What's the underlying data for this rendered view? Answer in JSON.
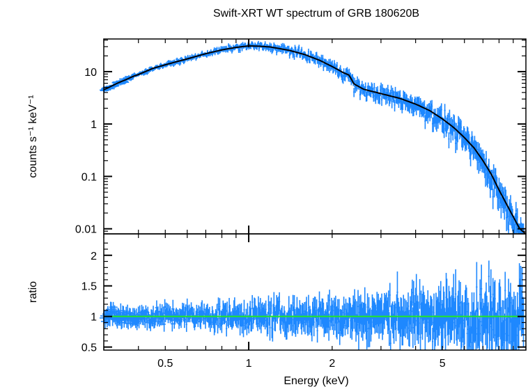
{
  "chart_data": {
    "type": "scatter",
    "title": "Swift-XRT WT spectrum of GRB 180620B",
    "xlabel": "Energy (keV)",
    "xscale": "log",
    "xlim": [
      0.3,
      10
    ],
    "xticks_major": [
      1
    ],
    "xticklabels": [
      {
        "value": 0.5,
        "label": "0.5"
      },
      {
        "value": 1,
        "label": "1"
      },
      {
        "value": 2,
        "label": "2"
      },
      {
        "value": 5,
        "label": "5"
      }
    ],
    "colors": {
      "data": "#1e88ff",
      "model": "#000000",
      "unity": "#22e822",
      "axes": "#000000"
    },
    "panels": [
      {
        "id": "spectrum",
        "ylabel": "counts s⁻¹ keV⁻¹",
        "yscale": "log",
        "ylim": [
          0.008,
          42
        ],
        "yticklabels": [
          {
            "value": 0.01,
            "label": "0.01"
          },
          {
            "value": 0.1,
            "label": "0.1"
          },
          {
            "value": 1,
            "label": "1"
          },
          {
            "value": 10,
            "label": "10"
          }
        ],
        "model": {
          "x": [
            0.3,
            0.32,
            0.34,
            0.36,
            0.38,
            0.4,
            0.45,
            0.5,
            0.55,
            0.6,
            0.7,
            0.8,
            0.9,
            1.0,
            1.1,
            1.2,
            1.4,
            1.6,
            1.8,
            2.0,
            2.2,
            2.3,
            2.4,
            2.6,
            3.0,
            3.5,
            4.0,
            4.5,
            5.0,
            5.5,
            6.0,
            6.5,
            7.0,
            7.5,
            8.0,
            8.5,
            9.0,
            9.5,
            10.0
          ],
          "y": [
            4.5,
            5.3,
            6.2,
            7.0,
            8.0,
            8.8,
            11.5,
            13.5,
            15.5,
            17.5,
            22.0,
            26.0,
            29.0,
            31.0,
            30.5,
            29.5,
            25.5,
            21.0,
            16.5,
            12.5,
            9.5,
            8.6,
            5.8,
            4.6,
            3.8,
            3.1,
            2.4,
            1.8,
            1.25,
            0.85,
            0.55,
            0.35,
            0.2,
            0.11,
            0.055,
            0.03,
            0.017,
            0.01,
            0.008
          ]
        },
        "data": {
          "noise_fraction": 0.3,
          "bins": 620
        }
      },
      {
        "id": "ratio",
        "ylabel": "ratio",
        "yscale": "linear",
        "ylim": [
          0.45,
          2.35
        ],
        "yticks_major": [
          0.5,
          1,
          1.5,
          2
        ],
        "yticklabels": [
          {
            "value": 0.5,
            "label": "0.5"
          },
          {
            "value": 1,
            "label": "1"
          },
          {
            "value": 1.5,
            "label": "1.5"
          },
          {
            "value": 2,
            "label": "2"
          }
        ],
        "reference_line": 1.0,
        "data": {
          "mean": 1.0,
          "scatter_low_energy": 0.12,
          "scatter_high_energy": 0.45,
          "bins": 620
        }
      }
    ],
    "grid": false
  }
}
